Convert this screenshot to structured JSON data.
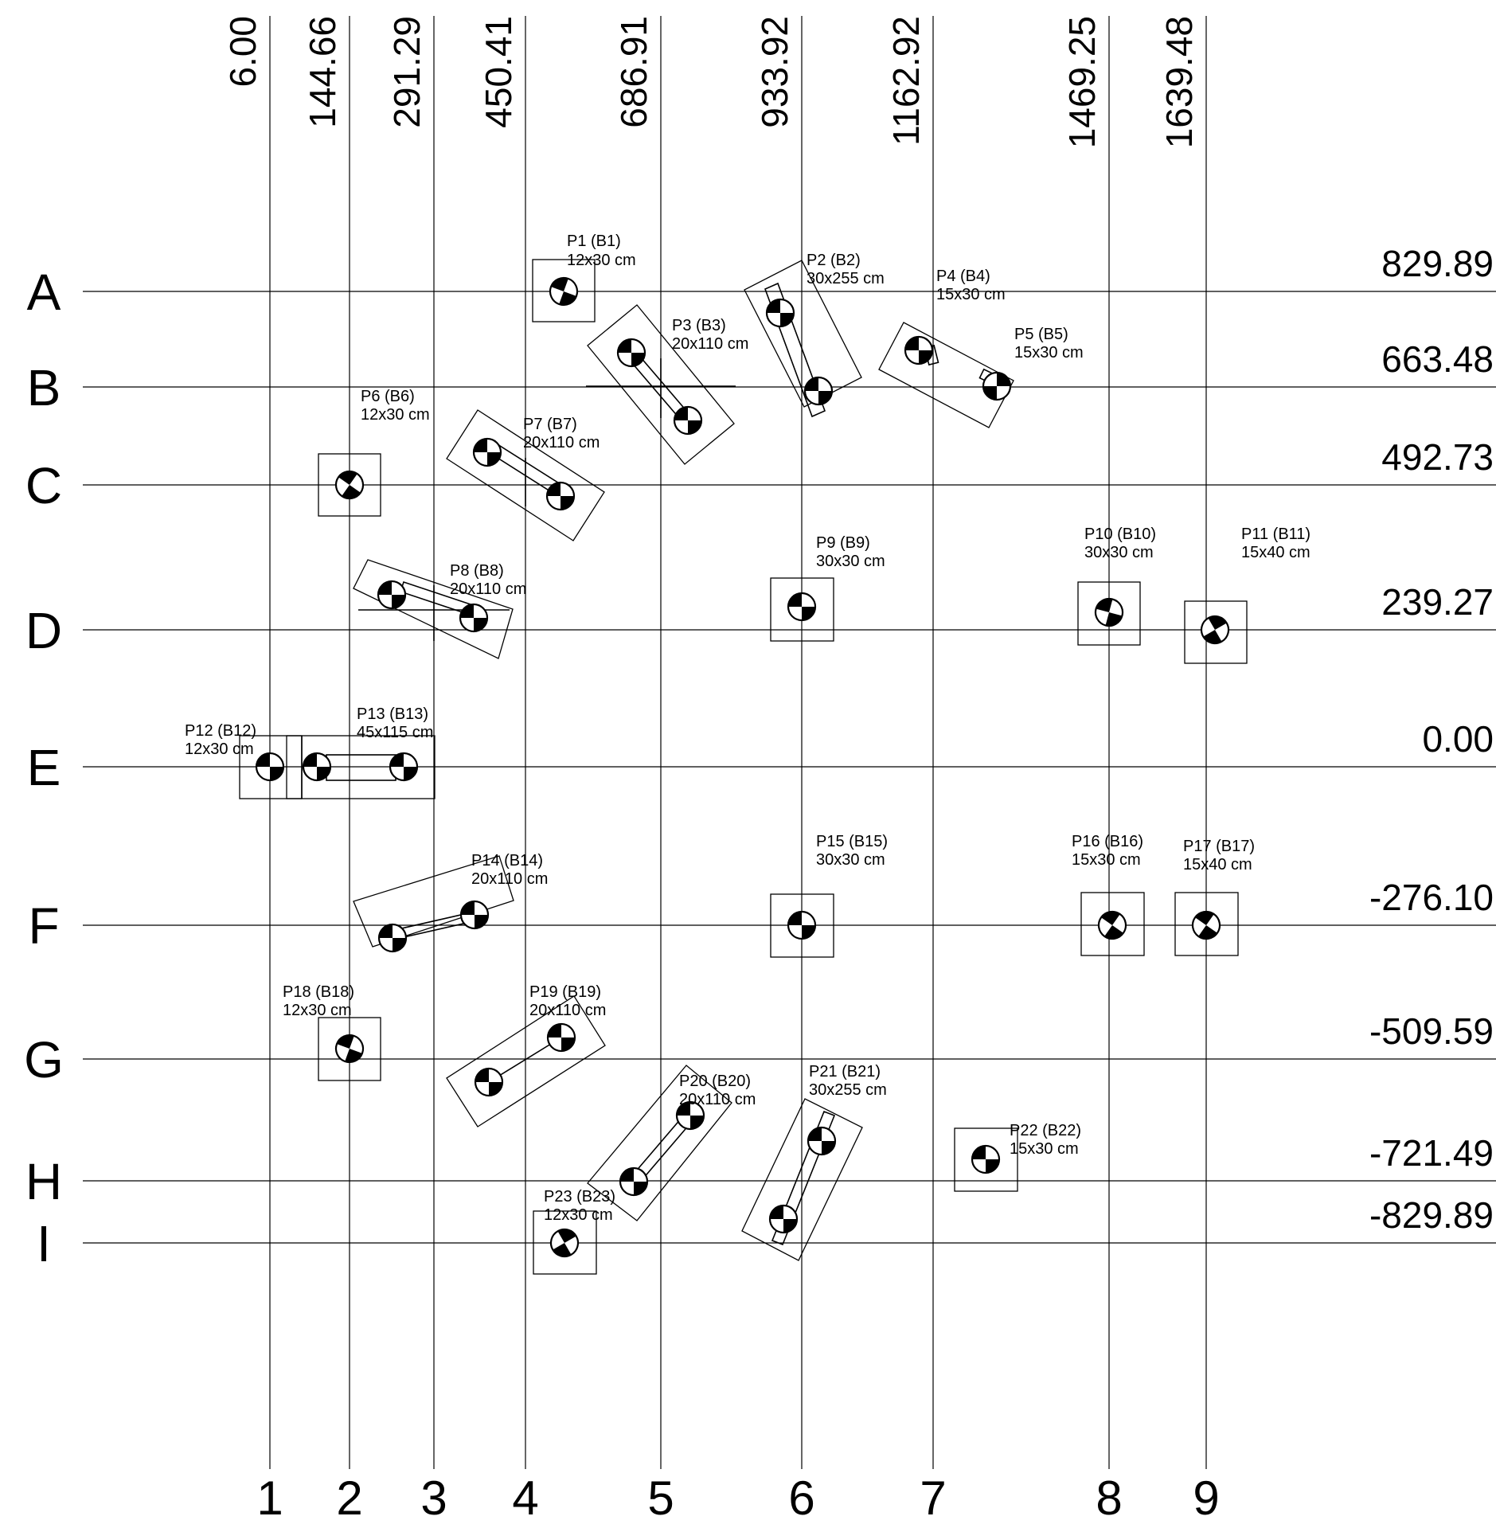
{
  "grid": {
    "x_coords": [
      "6.00",
      "144.66",
      "291.29",
      "450.41",
      "686.91",
      "933.92",
      "1162.92",
      "1469.25",
      "1639.48"
    ],
    "col_numbers": [
      "1",
      "2",
      "3",
      "4",
      "5",
      "6",
      "7",
      "8",
      "9"
    ],
    "row_letters": [
      "A",
      "B",
      "C",
      "D",
      "E",
      "F",
      "G",
      "H",
      "I"
    ],
    "y_coords": [
      "829.89",
      "663.48",
      "492.73",
      "239.27",
      "0.00",
      "-276.10",
      "-509.59",
      "-721.49",
      "-829.89"
    ]
  },
  "piers": [
    {
      "name": "P1 (B1)",
      "size": "12x30 cm"
    },
    {
      "name": "P2 (B2)",
      "size": "30x255 cm"
    },
    {
      "name": "P3 (B3)",
      "size": "20x110 cm"
    },
    {
      "name": "P4 (B4)",
      "size": "15x30 cm"
    },
    {
      "name": "P5 (B5)",
      "size": "15x30 cm"
    },
    {
      "name": "P6 (B6)",
      "size": "12x30 cm"
    },
    {
      "name": "P7 (B7)",
      "size": "20x110 cm"
    },
    {
      "name": "P8 (B8)",
      "size": "20x110 cm"
    },
    {
      "name": "P9 (B9)",
      "size": "30x30 cm"
    },
    {
      "name": "P10 (B10)",
      "size": "30x30 cm"
    },
    {
      "name": "P11 (B11)",
      "size": "15x40 cm"
    },
    {
      "name": "P12 (B12)",
      "size": "12x30 cm"
    },
    {
      "name": "P13 (B13)",
      "size": "45x115 cm"
    },
    {
      "name": "P14 (B14)",
      "size": "20x110 cm"
    },
    {
      "name": "P15 (B15)",
      "size": "30x30 cm"
    },
    {
      "name": "P16 (B16)",
      "size": "15x30 cm"
    },
    {
      "name": "P17 (B17)",
      "size": "15x40 cm"
    },
    {
      "name": "P18 (B18)",
      "size": "12x30 cm"
    },
    {
      "name": "P19 (B19)",
      "size": "20x110 cm"
    },
    {
      "name": "P20 (B20)",
      "size": "20x110 cm"
    },
    {
      "name": "P21 (B21)",
      "size": "30x255 cm"
    },
    {
      "name": "P22 (B22)",
      "size": "15x30 cm"
    },
    {
      "name": "P23 (B23)",
      "size": "12x30 cm"
    }
  ]
}
